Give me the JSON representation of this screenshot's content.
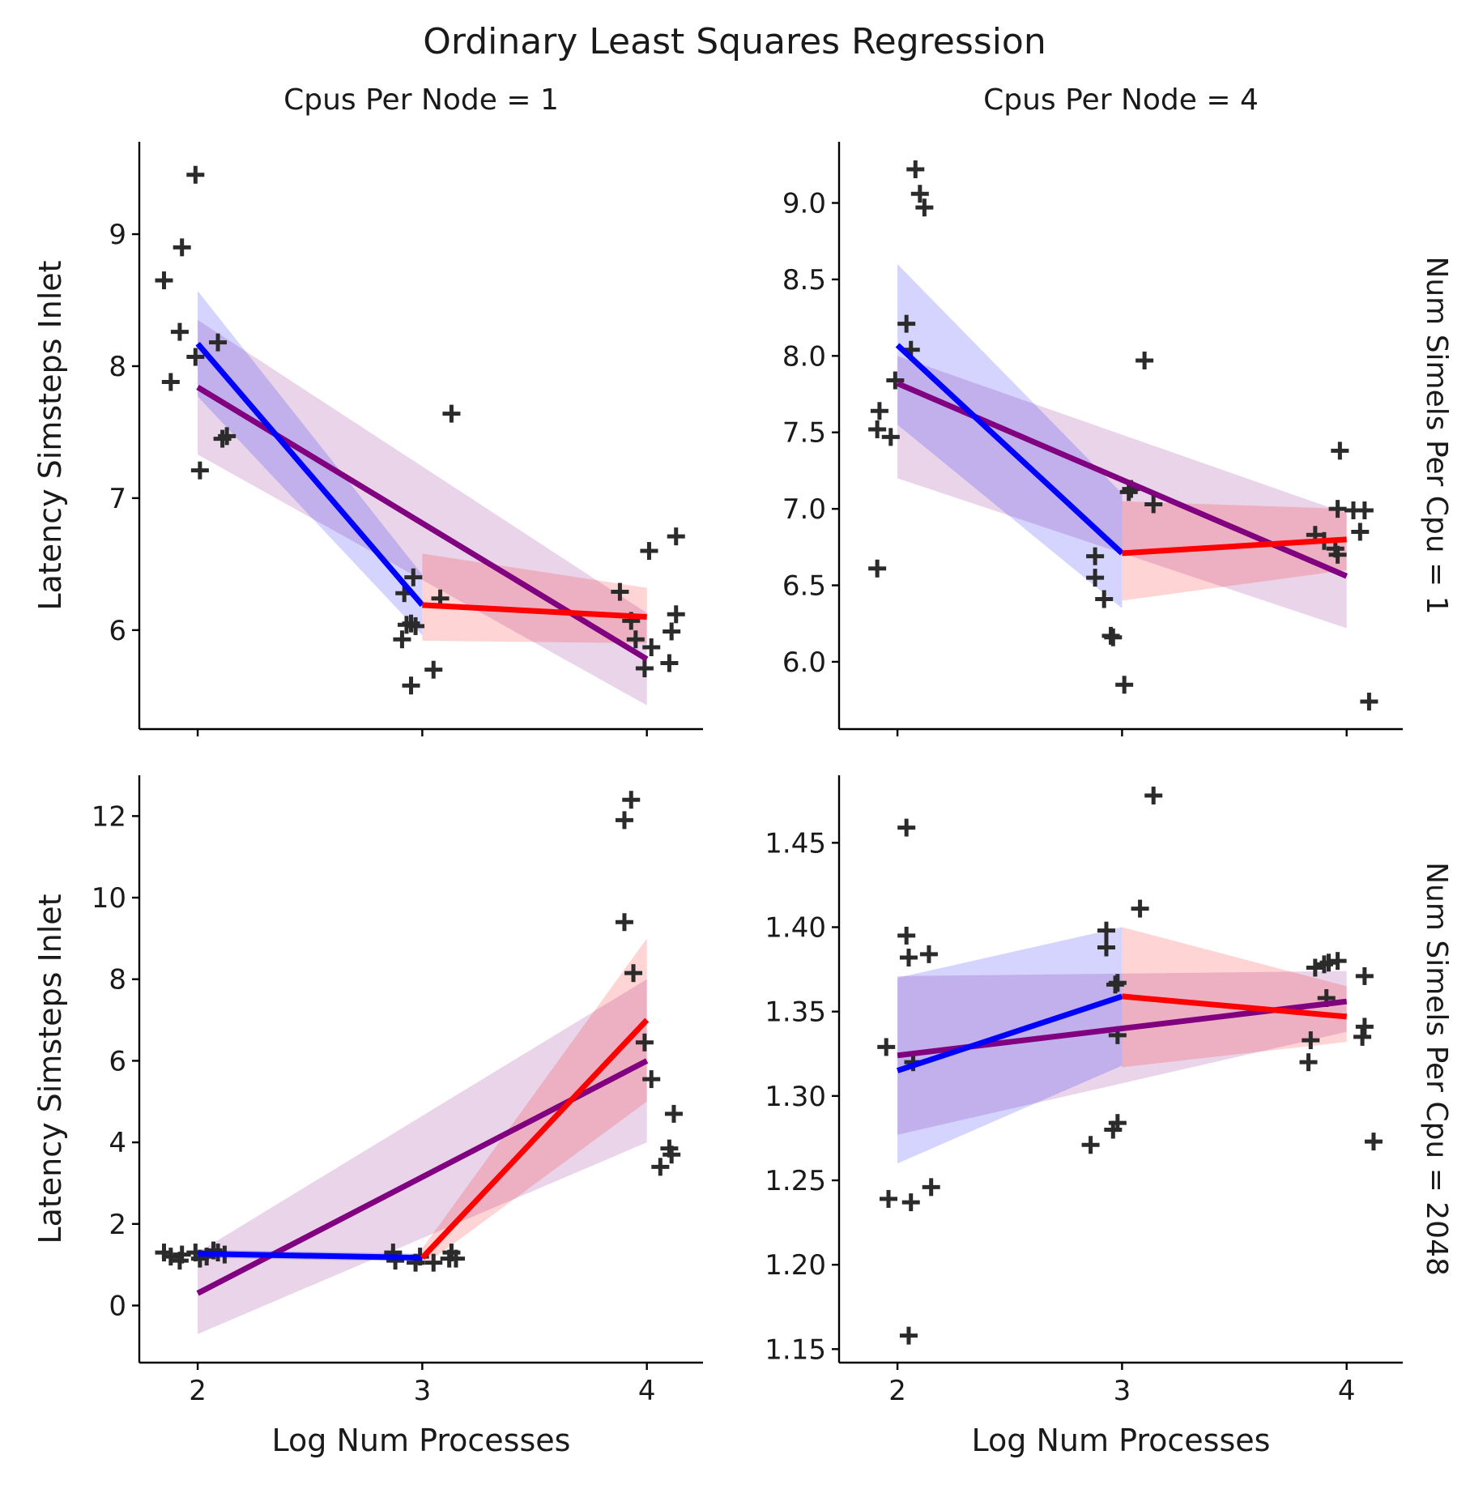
{
  "chart_data": {
    "type": "scatter",
    "title": "Ordinary Least Squares Regression",
    "x_label": "Log Num Processes",
    "y_label": "Latency Simsteps Inlet",
    "colors": {
      "overall": "#800080",
      "segment_low": "#0000ff",
      "segment_high": "#ff0000",
      "points": "#262626"
    },
    "panels": [
      {
        "id": "p11",
        "col_title": "Cpus Per Node = 1",
        "row_title": "Num Simels Per Cpu = 1",
        "show_y_label": true,
        "show_x_label": false,
        "show_x_ticklabels": false,
        "xlim": [
          1.74,
          4.25
        ],
        "ylim": [
          5.25,
          9.7
        ],
        "xticks": [
          2,
          3,
          4
        ],
        "yticks": [
          6,
          7,
          8,
          9
        ],
        "ytick_labels": [
          "6",
          "7",
          "8",
          "9"
        ],
        "points": [
          [
            1.85,
            8.65
          ],
          [
            1.88,
            7.88
          ],
          [
            1.92,
            8.26
          ],
          [
            1.93,
            8.9
          ],
          [
            1.99,
            9.45
          ],
          [
            1.99,
            8.07
          ],
          [
            2.01,
            7.21
          ],
          [
            2.09,
            8.18
          ],
          [
            2.11,
            7.45
          ],
          [
            2.13,
            7.47
          ],
          [
            2.91,
            5.93
          ],
          [
            2.92,
            6.28
          ],
          [
            2.93,
            6.04
          ],
          [
            2.95,
            5.58
          ],
          [
            2.95,
            6.05
          ],
          [
            2.96,
            6.4
          ],
          [
            2.97,
            6.03
          ],
          [
            3.05,
            5.7
          ],
          [
            3.08,
            6.24
          ],
          [
            3.13,
            7.64
          ],
          [
            3.88,
            6.29
          ],
          [
            3.93,
            6.07
          ],
          [
            3.95,
            5.93
          ],
          [
            3.99,
            5.71
          ],
          [
            4.01,
            6.6
          ],
          [
            4.02,
            5.87
          ],
          [
            4.1,
            5.75
          ],
          [
            4.11,
            5.99
          ],
          [
            4.13,
            6.12
          ],
          [
            4.13,
            6.71
          ]
        ],
        "fit_overall": {
          "x": [
            2,
            4
          ],
          "y": [
            7.84,
            5.78
          ],
          "ci_low_start": 7.33,
          "ci_high_start": 8.35,
          "ci_low_end": 5.43,
          "ci_high_end": 6.13
        },
        "fit_low": {
          "x": [
            2,
            3
          ],
          "y": [
            8.17,
            6.19
          ],
          "ci_low_start": 7.77,
          "ci_high_start": 8.57,
          "ci_low_end": 5.96,
          "ci_high_end": 6.42
        },
        "fit_high": {
          "x": [
            3,
            4
          ],
          "y": [
            6.19,
            6.1
          ],
          "ci_low_start": 5.92,
          "ci_high_start": 6.58,
          "ci_low_end": 5.9,
          "ci_high_end": 6.32
        }
      },
      {
        "id": "p12",
        "col_title": "Cpus Per Node = 4",
        "row_title": "Num Simels Per Cpu = 1",
        "show_y_label": false,
        "show_x_label": false,
        "show_x_ticklabels": false,
        "xlim": [
          1.74,
          4.25
        ],
        "ylim": [
          5.56,
          9.4
        ],
        "xticks": [
          2,
          3,
          4
        ],
        "yticks": [
          6.0,
          6.5,
          7.0,
          7.5,
          8.0,
          8.5,
          9.0
        ],
        "ytick_labels": [
          "6.0",
          "6.5",
          "7.0",
          "7.5",
          "8.0",
          "8.5",
          "9.0"
        ],
        "points": [
          [
            1.91,
            7.52
          ],
          [
            1.91,
            6.61
          ],
          [
            1.92,
            7.64
          ],
          [
            1.97,
            7.47
          ],
          [
            1.99,
            7.84
          ],
          [
            2.04,
            8.21
          ],
          [
            2.06,
            8.04
          ],
          [
            2.08,
            9.22
          ],
          [
            2.1,
            9.06
          ],
          [
            2.12,
            8.97
          ],
          [
            2.88,
            6.69
          ],
          [
            2.88,
            6.55
          ],
          [
            2.92,
            6.41
          ],
          [
            2.95,
            6.17
          ],
          [
            2.96,
            6.16
          ],
          [
            3.01,
            5.85
          ],
          [
            3.03,
            7.11
          ],
          [
            3.04,
            7.13
          ],
          [
            3.1,
            7.97
          ],
          [
            3.14,
            7.03
          ],
          [
            3.86,
            6.83
          ],
          [
            3.9,
            6.79
          ],
          [
            3.95,
            6.74
          ],
          [
            3.96,
            6.7
          ],
          [
            3.96,
            7.0
          ],
          [
            3.97,
            7.38
          ],
          [
            4.03,
            6.99
          ],
          [
            4.06,
            6.85
          ],
          [
            4.08,
            6.99
          ],
          [
            4.1,
            5.74
          ]
        ],
        "fit_overall": {
          "x": [
            2,
            4
          ],
          "y": [
            7.82,
            6.56
          ],
          "ci_low_start": 7.2,
          "ci_high_start": 8.0,
          "ci_low_end": 6.22,
          "ci_high_end": 6.97
        },
        "fit_low": {
          "x": [
            2,
            3
          ],
          "y": [
            8.07,
            6.71
          ],
          "ci_low_start": 7.55,
          "ci_high_start": 8.6,
          "ci_low_end": 6.35,
          "ci_high_end": 7.1
        },
        "fit_high": {
          "x": [
            3,
            4
          ],
          "y": [
            6.71,
            6.8
          ],
          "ci_low_start": 6.4,
          "ci_high_start": 7.05,
          "ci_low_end": 6.6,
          "ci_high_end": 7.0
        }
      },
      {
        "id": "p21",
        "col_title": "",
        "row_title": "Num Simels Per Cpu = 2048",
        "show_y_label": true,
        "show_x_label": true,
        "show_x_ticklabels": true,
        "xlim": [
          1.74,
          4.25
        ],
        "ylim": [
          -1.4,
          13.0
        ],
        "xticks": [
          2,
          3,
          4
        ],
        "xtick_labels": [
          "2",
          "3",
          "4"
        ],
        "yticks": [
          0,
          2,
          4,
          6,
          8,
          10,
          12
        ],
        "ytick_labels": [
          "0",
          "2",
          "4",
          "6",
          "8",
          "10",
          "12"
        ],
        "points": [
          [
            1.85,
            1.3
          ],
          [
            1.88,
            1.2
          ],
          [
            1.92,
            1.1
          ],
          [
            1.93,
            1.25
          ],
          [
            1.99,
            1.3
          ],
          [
            2.01,
            1.15
          ],
          [
            2.04,
            1.2
          ],
          [
            2.07,
            1.35
          ],
          [
            2.09,
            1.3
          ],
          [
            2.12,
            1.25
          ],
          [
            2.87,
            1.3
          ],
          [
            2.88,
            1.1
          ],
          [
            2.97,
            1.05
          ],
          [
            2.99,
            1.2
          ],
          [
            3.05,
            1.05
          ],
          [
            3.12,
            1.15
          ],
          [
            3.13,
            1.3
          ],
          [
            3.15,
            1.15
          ],
          [
            3.9,
            11.9
          ],
          [
            3.93,
            12.4
          ],
          [
            3.9,
            9.4
          ],
          [
            3.94,
            8.15
          ],
          [
            3.99,
            6.45
          ],
          [
            4.02,
            5.55
          ],
          [
            4.06,
            3.4
          ],
          [
            4.1,
            3.85
          ],
          [
            4.11,
            3.7
          ],
          [
            4.12,
            4.7
          ]
        ],
        "fit_overall": {
          "x": [
            2,
            4
          ],
          "y": [
            0.3,
            6.0
          ],
          "ci_low_start": -0.7,
          "ci_high_start": 1.3,
          "ci_low_end": 4.0,
          "ci_high_end": 8.0
        },
        "fit_low": {
          "x": [
            2,
            3
          ],
          "y": [
            1.27,
            1.17
          ],
          "ci_low_start": 1.17,
          "ci_high_start": 1.37,
          "ci_low_end": 1.08,
          "ci_high_end": 1.27
        },
        "fit_high": {
          "x": [
            3,
            4
          ],
          "y": [
            1.17,
            7.0
          ],
          "ci_low_start": 0.95,
          "ci_high_start": 1.4,
          "ci_low_end": 5.0,
          "ci_high_end": 9.0
        }
      },
      {
        "id": "p22",
        "col_title": "",
        "row_title": "Num Simels Per Cpu = 2048",
        "show_y_label": false,
        "show_x_label": true,
        "show_x_ticklabels": true,
        "xlim": [
          1.74,
          4.25
        ],
        "ylim": [
          1.142,
          1.49
        ],
        "xticks": [
          2,
          3,
          4
        ],
        "xtick_labels": [
          "2",
          "3",
          "4"
        ],
        "yticks": [
          1.15,
          1.2,
          1.25,
          1.3,
          1.35,
          1.4,
          1.45
        ],
        "ytick_labels": [
          "1.15",
          "1.20",
          "1.25",
          "1.30",
          "1.35",
          "1.40",
          "1.45"
        ],
        "points": [
          [
            1.95,
            1.329
          ],
          [
            1.96,
            1.239
          ],
          [
            2.04,
            1.459
          ],
          [
            2.04,
            1.395
          ],
          [
            2.05,
            1.382
          ],
          [
            2.05,
            1.158
          ],
          [
            2.06,
            1.237
          ],
          [
            2.07,
            1.32
          ],
          [
            2.14,
            1.384
          ],
          [
            2.15,
            1.246
          ],
          [
            2.86,
            1.271
          ],
          [
            2.93,
            1.398
          ],
          [
            2.93,
            1.388
          ],
          [
            2.96,
            1.28
          ],
          [
            2.97,
            1.366
          ],
          [
            2.98,
            1.284
          ],
          [
            2.98,
            1.336
          ],
          [
            2.98,
            1.367
          ],
          [
            3.08,
            1.411
          ],
          [
            3.14,
            1.478
          ],
          [
            3.83,
            1.32
          ],
          [
            3.84,
            1.333
          ],
          [
            3.86,
            1.376
          ],
          [
            3.9,
            1.378
          ],
          [
            3.91,
            1.358
          ],
          [
            3.92,
            1.379
          ],
          [
            3.96,
            1.38
          ],
          [
            4.07,
            1.335
          ],
          [
            4.08,
            1.341
          ],
          [
            4.08,
            1.371
          ],
          [
            4.12,
            1.273
          ]
        ],
        "fit_overall": {
          "x": [
            2,
            4
          ],
          "y": [
            1.324,
            1.356
          ],
          "ci_low_start": 1.277,
          "ci_high_start": 1.371,
          "ci_low_end": 1.338,
          "ci_high_end": 1.374
        },
        "fit_low": {
          "x": [
            2,
            3
          ],
          "y": [
            1.315,
            1.359
          ],
          "ci_low_start": 1.26,
          "ci_high_start": 1.37,
          "ci_low_end": 1.318,
          "ci_high_end": 1.4
        },
        "fit_high": {
          "x": [
            3,
            4
          ],
          "y": [
            1.359,
            1.347
          ],
          "ci_low_start": 1.317,
          "ci_high_start": 1.4,
          "ci_low_end": 1.332,
          "ci_high_end": 1.365
        }
      }
    ]
  }
}
